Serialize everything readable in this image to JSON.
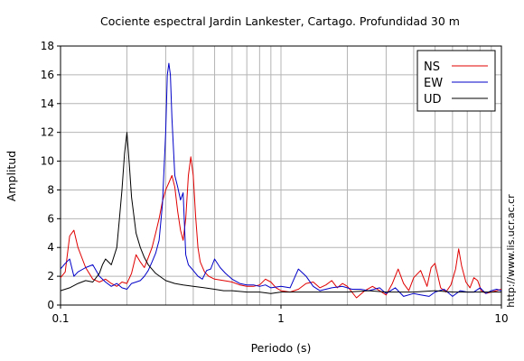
{
  "chart_data": {
    "type": "line",
    "title": "Cociente espectral Jardin Lankester, Cartago. Profundidad 30 m",
    "xlabel": "Periodo (s)",
    "ylabel": "Amplitud",
    "x_scale": "log",
    "xlim": [
      0.1,
      10
    ],
    "ylim": [
      0,
      18
    ],
    "x_ticks": [
      0.1,
      1,
      10
    ],
    "x_tick_labels": [
      "0.1",
      "1",
      "10"
    ],
    "y_ticks": [
      0,
      2,
      4,
      6,
      8,
      10,
      12,
      14,
      16,
      18
    ],
    "y_tick_labels": [
      "0",
      "2",
      "4",
      "6",
      "8",
      "10",
      "12",
      "14",
      "16",
      "18"
    ],
    "grid": true,
    "legend_position": "top-right",
    "side_note": "http://www.lis.ucr.ac.cr",
    "series": [
      {
        "name": "NS",
        "color": "#e00000",
        "x": [
          0.1,
          0.105,
          0.11,
          0.115,
          0.12,
          0.13,
          0.14,
          0.15,
          0.16,
          0.17,
          0.18,
          0.19,
          0.2,
          0.21,
          0.22,
          0.23,
          0.24,
          0.25,
          0.26,
          0.27,
          0.28,
          0.29,
          0.3,
          0.31,
          0.32,
          0.33,
          0.34,
          0.35,
          0.36,
          0.37,
          0.38,
          0.39,
          0.4,
          0.41,
          0.42,
          0.43,
          0.45,
          0.47,
          0.5,
          0.55,
          0.6,
          0.65,
          0.7,
          0.75,
          0.8,
          0.85,
          0.9,
          0.95,
          1.0,
          1.1,
          1.2,
          1.3,
          1.4,
          1.5,
          1.6,
          1.7,
          1.8,
          1.9,
          2.0,
          2.2,
          2.4,
          2.6,
          2.8,
          3.0,
          3.2,
          3.4,
          3.6,
          3.8,
          4.0,
          4.3,
          4.6,
          4.8,
          5.0,
          5.3,
          5.6,
          5.9,
          6.2,
          6.4,
          6.6,
          6.9,
          7.2,
          7.5,
          7.8,
          8.1,
          8.5,
          9.0,
          9.5,
          10.0
        ],
        "y": [
          1.9,
          2.3,
          4.8,
          5.2,
          4.0,
          2.6,
          1.8,
          1.6,
          1.8,
          1.5,
          1.3,
          1.6,
          1.5,
          2.2,
          3.5,
          3.0,
          2.6,
          3.3,
          4.0,
          5.0,
          6.0,
          7.2,
          8.0,
          8.5,
          9.0,
          8.2,
          6.5,
          5.2,
          4.5,
          6.0,
          9.0,
          10.3,
          9.0,
          6.2,
          4.0,
          3.0,
          2.3,
          2.0,
          1.8,
          1.7,
          1.6,
          1.4,
          1.3,
          1.3,
          1.4,
          1.8,
          1.6,
          1.2,
          1.0,
          0.9,
          1.1,
          1.5,
          1.6,
          1.2,
          1.4,
          1.7,
          1.2,
          1.5,
          1.3,
          0.5,
          1.0,
          1.3,
          1.0,
          0.7,
          1.5,
          2.5,
          1.5,
          1.0,
          1.9,
          2.4,
          1.3,
          2.6,
          2.9,
          1.2,
          0.9,
          1.4,
          2.5,
          3.9,
          2.7,
          1.6,
          1.2,
          1.9,
          1.7,
          1.0,
          0.8,
          0.9,
          1.0,
          1.1
        ]
      },
      {
        "name": "EW",
        "color": "#0000c8",
        "x": [
          0.1,
          0.105,
          0.11,
          0.115,
          0.12,
          0.13,
          0.14,
          0.15,
          0.16,
          0.17,
          0.18,
          0.19,
          0.2,
          0.21,
          0.22,
          0.23,
          0.24,
          0.25,
          0.26,
          0.27,
          0.28,
          0.29,
          0.3,
          0.305,
          0.31,
          0.315,
          0.32,
          0.33,
          0.34,
          0.35,
          0.36,
          0.37,
          0.38,
          0.39,
          0.4,
          0.42,
          0.44,
          0.46,
          0.48,
          0.5,
          0.53,
          0.56,
          0.6,
          0.65,
          0.7,
          0.75,
          0.8,
          0.85,
          0.9,
          1.0,
          1.1,
          1.2,
          1.3,
          1.4,
          1.5,
          1.7,
          1.9,
          2.1,
          2.3,
          2.5,
          2.8,
          3.0,
          3.3,
          3.6,
          4.0,
          4.3,
          4.7,
          5.0,
          5.5,
          6.0,
          6.5,
          7.0,
          7.5,
          8.0,
          8.5,
          9.0,
          9.5,
          10.0
        ],
        "y": [
          2.5,
          2.9,
          3.2,
          2.0,
          2.3,
          2.6,
          2.8,
          2.0,
          1.6,
          1.3,
          1.5,
          1.2,
          1.1,
          1.5,
          1.6,
          1.7,
          2.0,
          2.4,
          3.0,
          3.6,
          4.5,
          7.0,
          12.0,
          16.0,
          16.8,
          16.0,
          13.0,
          9.0,
          8.2,
          7.3,
          7.8,
          3.5,
          2.8,
          2.6,
          2.4,
          2.0,
          1.8,
          2.4,
          2.5,
          3.2,
          2.6,
          2.2,
          1.8,
          1.5,
          1.4,
          1.4,
          1.3,
          1.4,
          1.2,
          1.3,
          1.2,
          2.5,
          2.0,
          1.3,
          1.0,
          1.2,
          1.3,
          1.1,
          1.1,
          1.0,
          1.2,
          0.8,
          1.2,
          0.6,
          0.8,
          0.7,
          0.6,
          0.9,
          1.1,
          0.6,
          1.0,
          0.9,
          0.9,
          1.2,
          0.8,
          1.0,
          1.1,
          1.0
        ]
      },
      {
        "name": "UD",
        "color": "#000000",
        "x": [
          0.1,
          0.11,
          0.12,
          0.13,
          0.14,
          0.15,
          0.155,
          0.16,
          0.17,
          0.18,
          0.185,
          0.19,
          0.195,
          0.2,
          0.205,
          0.21,
          0.22,
          0.23,
          0.24,
          0.25,
          0.27,
          0.3,
          0.33,
          0.36,
          0.4,
          0.45,
          0.5,
          0.55,
          0.6,
          0.7,
          0.8,
          0.9,
          1.0,
          1.2,
          1.5,
          2.0,
          2.5,
          3.0,
          4.0,
          5.0,
          6.0,
          7.0,
          8.0,
          10.0
        ],
        "y": [
          1.0,
          1.2,
          1.5,
          1.7,
          1.6,
          2.2,
          2.8,
          3.2,
          2.8,
          4.0,
          6.0,
          8.0,
          10.5,
          12.0,
          9.8,
          7.5,
          5.0,
          4.0,
          3.3,
          2.8,
          2.2,
          1.7,
          1.5,
          1.4,
          1.3,
          1.2,
          1.1,
          1.0,
          1.0,
          0.9,
          0.9,
          0.8,
          0.9,
          0.9,
          0.9,
          0.9,
          1.0,
          0.9,
          0.9,
          1.0,
          0.9,
          0.9,
          0.9,
          0.9
        ]
      }
    ]
  }
}
